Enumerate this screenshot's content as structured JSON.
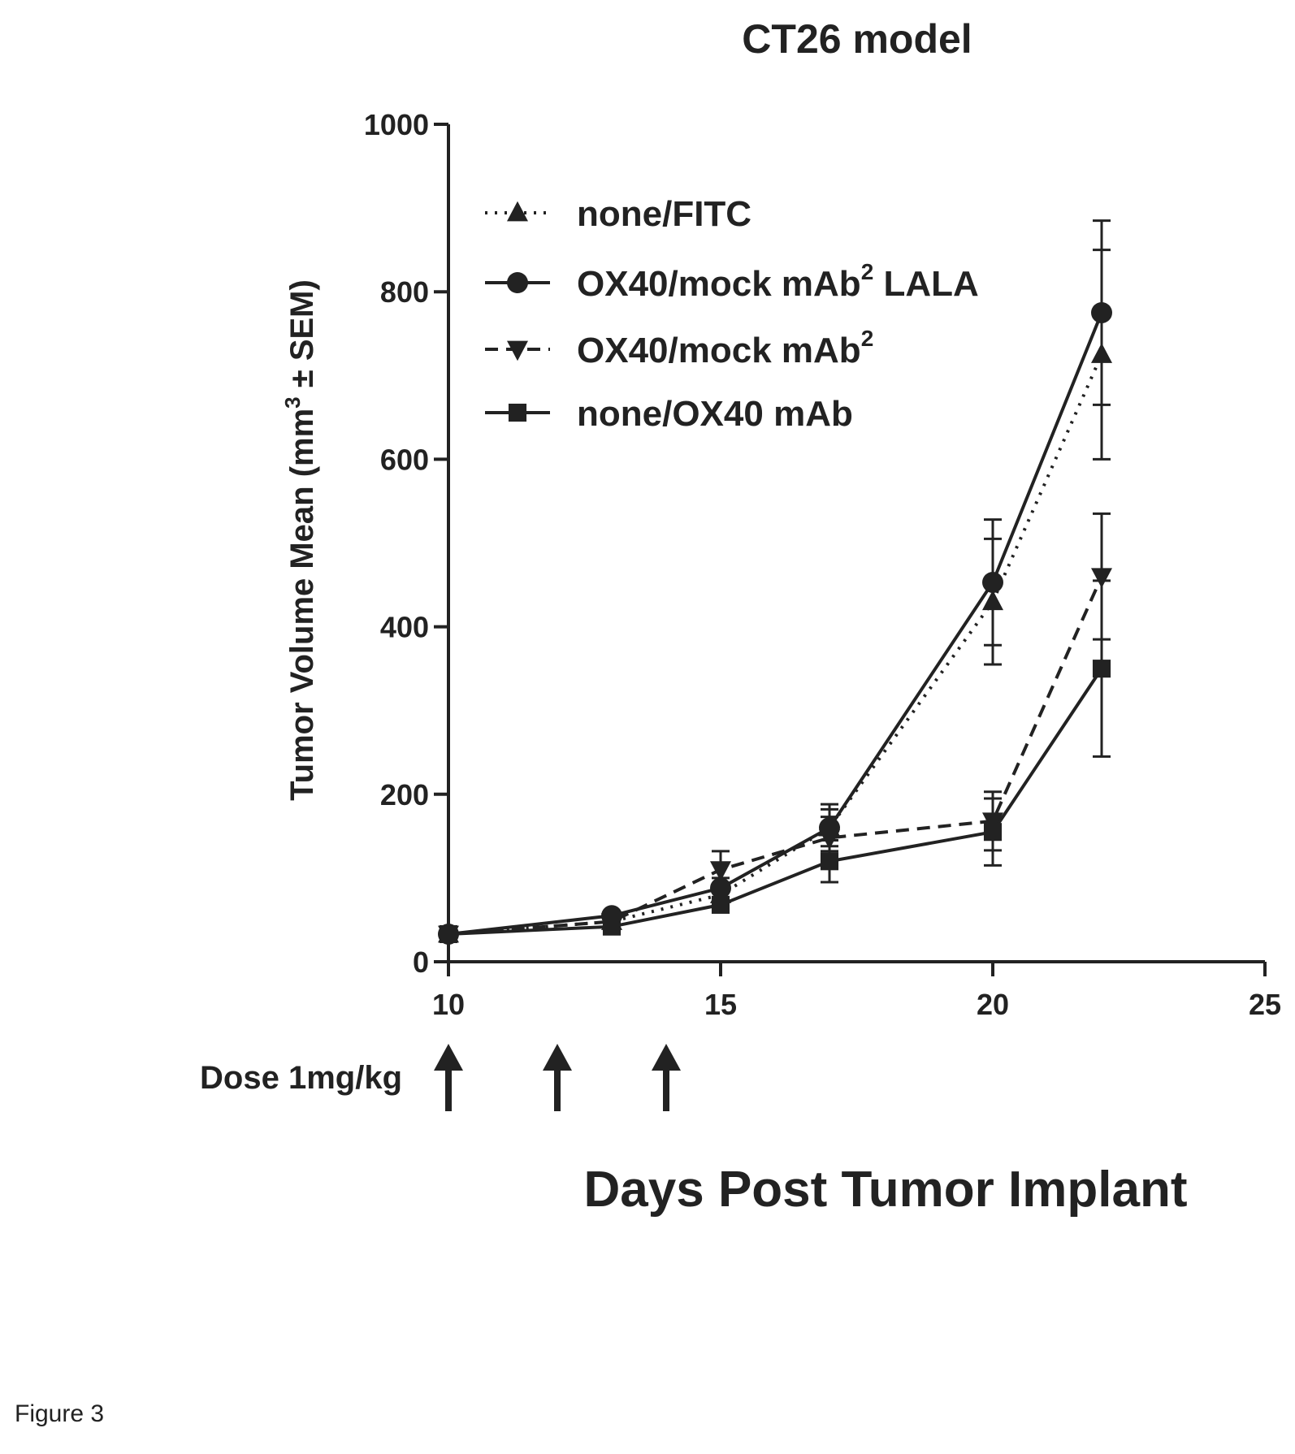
{
  "figure_caption": "Figure 3",
  "dose": {
    "label": "Dose 1mg/kg",
    "days": [
      10,
      12,
      14
    ]
  },
  "chart_data": {
    "type": "line",
    "title": "CT26 model",
    "xlabel": "Days Post Tumor Implant",
    "ylabel": {
      "prefix": "Tumor Volume Mean (mm",
      "superscript": "3",
      "suffix": " ± SEM)"
    },
    "xlim": [
      10,
      25
    ],
    "ylim": [
      0,
      1000
    ],
    "x_ticks": [
      10,
      15,
      20,
      25
    ],
    "y_ticks": [
      0,
      200,
      400,
      600,
      800,
      1000
    ],
    "grid": false,
    "legend_position": "upper-left",
    "series": [
      {
        "name": "none/FITC",
        "name_superscript": "",
        "marker": "triangle",
        "line_style": "dotted",
        "x": [
          10,
          13,
          15,
          17,
          20,
          22
        ],
        "y": [
          33,
          48,
          80,
          160,
          430,
          725
        ],
        "sem": [
          3,
          5,
          10,
          22,
          75,
          125
        ]
      },
      {
        "name": "OX40/mock mAb",
        "name_superscript": "2",
        "name_suffix": " LALA",
        "marker": "circle",
        "line_style": "solid",
        "x": [
          10,
          13,
          15,
          17,
          20,
          22
        ],
        "y": [
          33,
          55,
          88,
          160,
          453,
          775
        ],
        "sem": [
          3,
          5,
          12,
          28,
          75,
          110
        ]
      },
      {
        "name": "OX40/mock mAb",
        "name_superscript": "2",
        "name_suffix": "",
        "marker": "triangle-down",
        "line_style": "dashed",
        "x": [
          10,
          13,
          15,
          17,
          20,
          22
        ],
        "y": [
          33,
          48,
          110,
          148,
          168,
          460
        ],
        "sem": [
          3,
          5,
          22,
          25,
          35,
          75
        ]
      },
      {
        "name": "none/OX40 mAb",
        "name_superscript": "",
        "marker": "square",
        "line_style": "solid",
        "x": [
          10,
          13,
          15,
          17,
          20,
          22
        ],
        "y": [
          33,
          42,
          68,
          120,
          155,
          350
        ],
        "sem": [
          3,
          4,
          6,
          25,
          40,
          105
        ]
      }
    ]
  },
  "colors": {
    "ink": "#222222",
    "background": "#ffffff"
  }
}
